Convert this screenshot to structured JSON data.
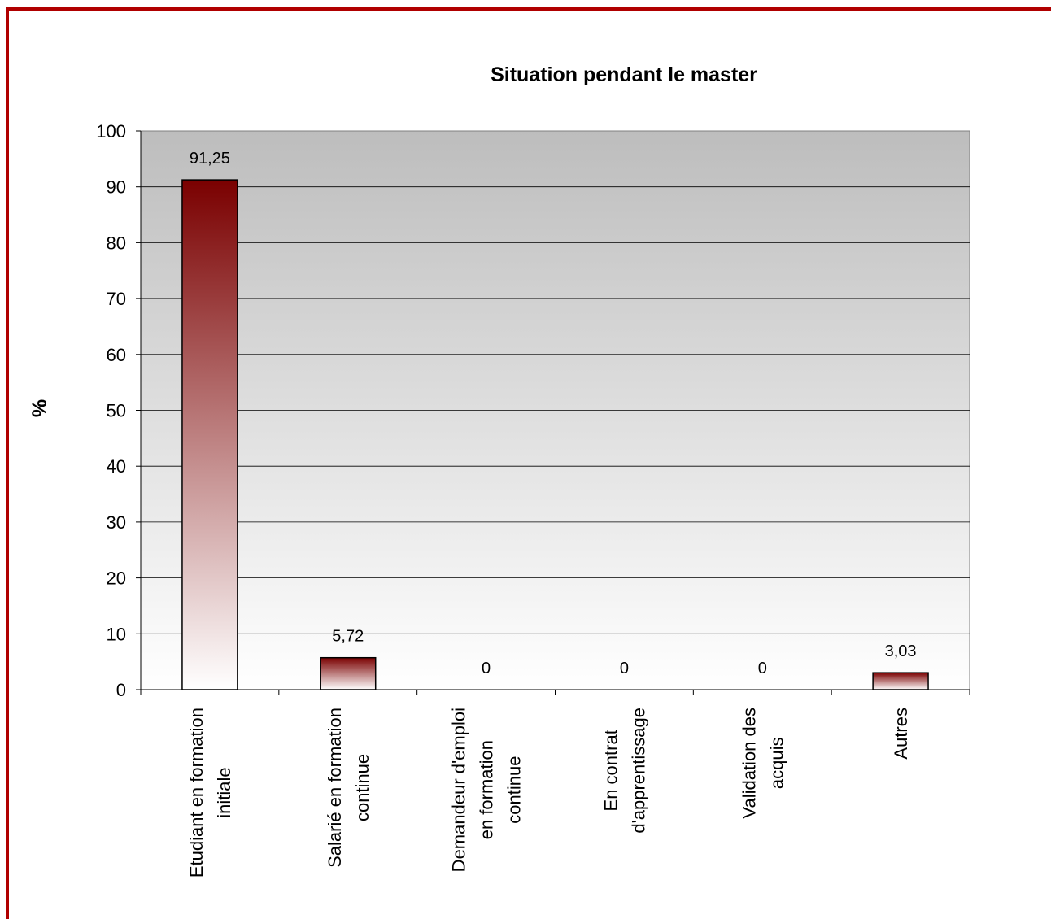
{
  "chart_data": {
    "type": "bar",
    "title": "Situation pendant le master",
    "ylabel": "%",
    "ylim": [
      0,
      100
    ],
    "yticks": [
      0,
      10,
      20,
      30,
      40,
      50,
      60,
      70,
      80,
      90,
      100
    ],
    "grid": true,
    "legend": "none",
    "categories": [
      [
        "Etudiant en formation",
        "initiale"
      ],
      [
        "Salarié en formation",
        "continue"
      ],
      [
        "Demandeur d'emploi",
        "en formation",
        "continue"
      ],
      [
        "En contrat",
        "d'apprentissage"
      ],
      [
        "Validation des",
        "acquis"
      ],
      [
        "Autres"
      ]
    ],
    "values": [
      91.25,
      5.72,
      0,
      0,
      0,
      3.03
    ],
    "value_labels": [
      "91,25",
      "5,72",
      "0",
      "0",
      "0",
      "3,03"
    ],
    "colors": {
      "border": "#b00000",
      "bar_top": "#7a0000",
      "bar_bottom": "#ffffff",
      "plot_top": "#bdbdbd",
      "plot_bottom": "#ffffff"
    }
  }
}
